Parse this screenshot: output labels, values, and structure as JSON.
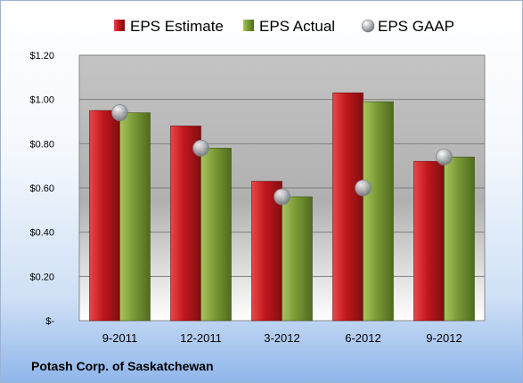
{
  "company": "Potash Corp. of Saskatchewan",
  "colors": {
    "estimate": "#c0171c",
    "actual": "#7a9a36",
    "gaap": "#b8bcc2"
  },
  "chart_data": {
    "type": "bar",
    "title": "",
    "xlabel": "",
    "ylabel": "",
    "categories": [
      "9-2011",
      "12-2011",
      "3-2012",
      "6-2012",
      "9-2012"
    ],
    "series": [
      {
        "name": "EPS Estimate",
        "kind": "bar",
        "values": [
          0.95,
          0.88,
          0.63,
          1.03,
          0.72
        ]
      },
      {
        "name": "EPS Actual",
        "kind": "bar",
        "values": [
          0.94,
          0.78,
          0.56,
          0.99,
          0.74
        ]
      },
      {
        "name": "EPS GAAP",
        "kind": "marker",
        "values": [
          0.94,
          0.78,
          0.56,
          0.6,
          0.74
        ]
      }
    ],
    "ylim": [
      0,
      1.2
    ],
    "yticks": [
      0,
      0.2,
      0.4,
      0.6,
      0.8,
      1.0,
      1.2
    ],
    "ytick_labels": [
      "$-",
      "$0.20",
      "$0.40",
      "$0.60",
      "$0.80",
      "$1.00",
      "$1.20"
    ],
    "grid": true,
    "legend_position": "top"
  }
}
